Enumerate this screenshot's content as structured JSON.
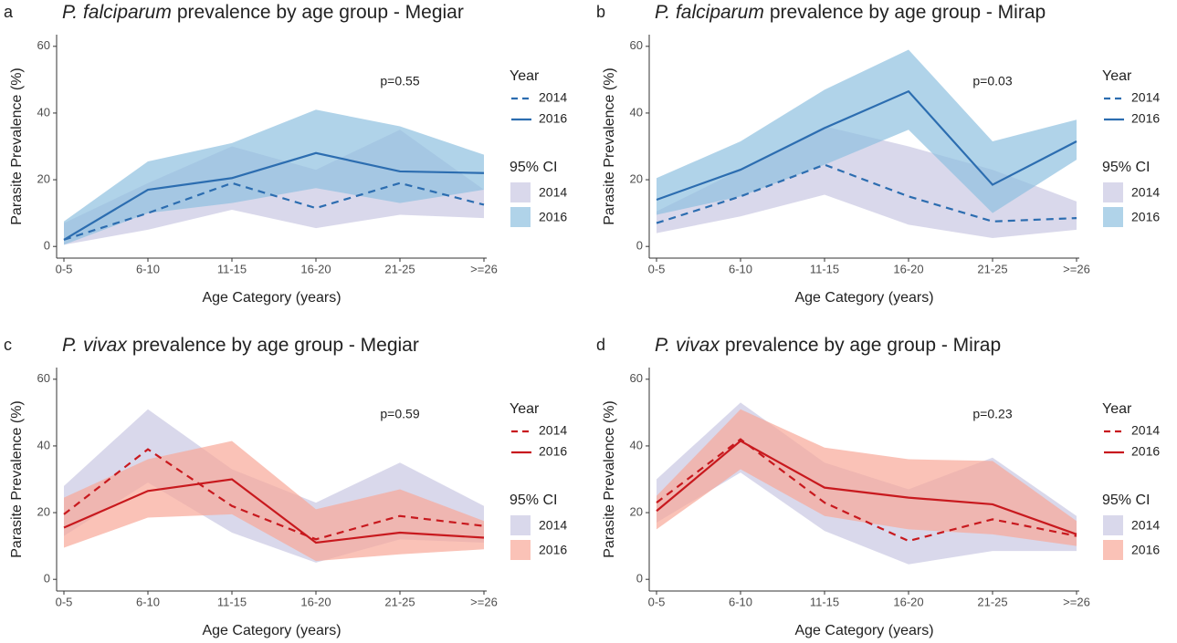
{
  "chart_data": [
    {
      "type": "line",
      "panel": "a",
      "species": "P. falciparum",
      "title": "prevalence by age group - Megiar",
      "annotation": "p=0.55",
      "xlabel": "Age Category (years)",
      "ylabel": "Parasite Prevalence (%)",
      "categories": [
        "0-5",
        "6-10",
        "11-15",
        "16-20",
        "21-25",
        ">=26"
      ],
      "ylim": [
        -3.5,
        63.5
      ],
      "yticks": [
        0,
        20,
        40,
        60
      ],
      "legend_title": "Year",
      "series": [
        {
          "name": "2014",
          "color": "#2c6db0",
          "linestyle": "dashed",
          "values": [
            2,
            10,
            19,
            11.5,
            19,
            12.5
          ]
        },
        {
          "name": "2016",
          "color": "#2c6db0",
          "linestyle": "solid",
          "values": [
            2,
            17,
            20.5,
            28,
            22.5,
            22
          ]
        }
      ],
      "ci_title": "95% CI",
      "bands": [
        {
          "name": "2014",
          "color": "#c9c8e3",
          "lower": [
            0.5,
            5,
            11,
            5.5,
            9.5,
            8.5
          ],
          "upper": [
            7,
            19,
            30,
            23,
            35,
            17
          ]
        },
        {
          "name": "2016",
          "color": "#8fc0e0",
          "lower": [
            0.5,
            10,
            13,
            17.5,
            13,
            17
          ],
          "upper": [
            7.5,
            25.5,
            31,
            41,
            36,
            27.5
          ]
        }
      ]
    },
    {
      "type": "line",
      "panel": "b",
      "species": "P. falciparum",
      "title": "prevalence by age group - Mirap",
      "annotation": "p=0.03",
      "xlabel": "Age Category (years)",
      "ylabel": "Parasite Prevalence (%)",
      "categories": [
        "0-5",
        "6-10",
        "11-15",
        "16-20",
        "21-25",
        ">=26"
      ],
      "ylim": [
        -3.5,
        63.5
      ],
      "yticks": [
        0,
        20,
        40,
        60
      ],
      "legend_title": "Year",
      "series": [
        {
          "name": "2014",
          "color": "#2c6db0",
          "linestyle": "dashed",
          "values": [
            7,
            15,
            24.5,
            15,
            7.5,
            8.5
          ]
        },
        {
          "name": "2016",
          "color": "#2c6db0",
          "linestyle": "solid",
          "values": [
            14,
            23,
            35.5,
            46.5,
            18.5,
            31.5
          ]
        }
      ],
      "ci_title": "95% CI",
      "bands": [
        {
          "name": "2014",
          "color": "#c9c8e3",
          "lower": [
            4,
            9,
            15.5,
            6.5,
            2.5,
            5
          ],
          "upper": [
            10.5,
            23,
            36,
            30,
            23,
            13.5
          ]
        },
        {
          "name": "2016",
          "color": "#8fc0e0",
          "lower": [
            9.5,
            15,
            24.5,
            35,
            10,
            26
          ],
          "upper": [
            20.5,
            31.5,
            47,
            59,
            31.5,
            38
          ]
        }
      ]
    },
    {
      "type": "line",
      "panel": "c",
      "species": "P. vivax",
      "title": "prevalence by age group - Megiar",
      "annotation": "p=0.59",
      "xlabel": "Age Category (years)",
      "ylabel": "Parasite Prevalence (%)",
      "categories": [
        "0-5",
        "6-10",
        "11-15",
        "16-20",
        "21-25",
        ">=26"
      ],
      "ylim": [
        -3.5,
        63.5
      ],
      "yticks": [
        0,
        20,
        40,
        60
      ],
      "legend_title": "Year",
      "series": [
        {
          "name": "2014",
          "color": "#c8191e",
          "linestyle": "dashed",
          "values": [
            19.5,
            39,
            22,
            12,
            19,
            16
          ]
        },
        {
          "name": "2016",
          "color": "#c8191e",
          "linestyle": "solid",
          "values": [
            15.5,
            26.5,
            30,
            11,
            14,
            12.5
          ]
        }
      ],
      "ci_title": "95% CI",
      "bands": [
        {
          "name": "2014",
          "color": "#c9c8e3",
          "lower": [
            13,
            29,
            14,
            5,
            12,
            11
          ],
          "upper": [
            28,
            51,
            33,
            23,
            35,
            22
          ]
        },
        {
          "name": "2016",
          "color": "#f8a898",
          "lower": [
            9.5,
            18.5,
            19.5,
            5.5,
            7.5,
            9
          ],
          "upper": [
            24.5,
            36,
            41.5,
            21,
            27,
            17.5
          ]
        }
      ]
    },
    {
      "type": "line",
      "panel": "d",
      "species": "P. vivax",
      "title": "prevalence by age group - Mirap",
      "annotation": "p=0.23",
      "xlabel": "Age Category (years)",
      "ylabel": "Parasite Prevalence (%)",
      "categories": [
        "0-5",
        "6-10",
        "11-15",
        "16-20",
        "21-25",
        ">=26"
      ],
      "ylim": [
        -3.5,
        63.5
      ],
      "yticks": [
        0,
        20,
        40,
        60
      ],
      "legend_title": "Year",
      "series": [
        {
          "name": "2014",
          "color": "#c8191e",
          "linestyle": "dashed",
          "values": [
            23,
            42,
            23,
            11.5,
            18,
            13
          ]
        },
        {
          "name": "2016",
          "color": "#c8191e",
          "linestyle": "solid",
          "values": [
            20.5,
            41.5,
            27.5,
            24.5,
            22.5,
            13.5
          ]
        }
      ],
      "ci_title": "95% CI",
      "bands": [
        {
          "name": "2014",
          "color": "#c9c8e3",
          "lower": [
            17,
            32,
            14.5,
            4.5,
            8.5,
            8.5
          ],
          "upper": [
            30,
            53,
            35,
            27,
            36.5,
            19
          ]
        },
        {
          "name": "2016",
          "color": "#f8a898",
          "lower": [
            15,
            33,
            19,
            15,
            13.5,
            10
          ],
          "upper": [
            25,
            51,
            39.5,
            36,
            35.5,
            17.5
          ]
        }
      ]
    }
  ]
}
